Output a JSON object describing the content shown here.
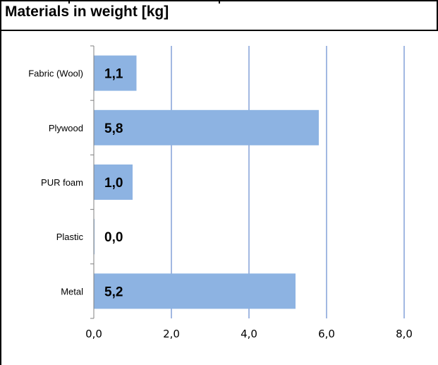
{
  "colors": {
    "bar": "#8DB3E2",
    "grid": "#4472C4",
    "axis": "#808080",
    "text": "#000000"
  },
  "chart_data": {
    "type": "bar",
    "orientation": "horizontal",
    "title": "Materials in weight [kg]",
    "xlabel": "",
    "ylabel": "",
    "categories": [
      "Fabric (Wool)",
      "Plywood",
      "PUR foam",
      "Plastic",
      "Metal"
    ],
    "values": [
      1.1,
      5.8,
      1.0,
      0.0,
      5.2
    ],
    "data_labels": [
      "1,1",
      "5,8",
      "1,0",
      "0,0",
      "5,2"
    ],
    "xlim": [
      0,
      8
    ],
    "ticks": [
      0,
      2,
      4,
      6,
      8
    ],
    "tick_labels": [
      "0,0",
      "2,0",
      "4,0",
      "6,0",
      "8,0"
    ],
    "grid": "vertical",
    "legend": "none"
  }
}
